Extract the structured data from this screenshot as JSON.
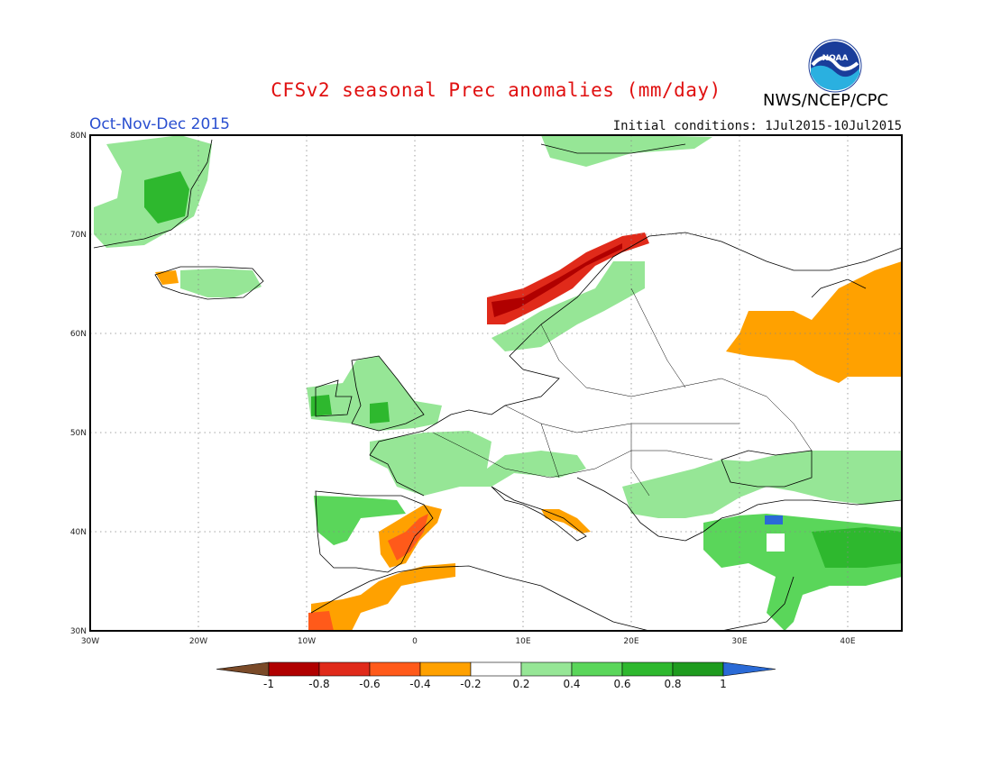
{
  "title": "CFSv2 seasonal Prec anomalies (mm/day)",
  "period": "Oct-Nov-Dec 2015",
  "initial_conditions": "Initial conditions: 1Jul2015-10Jul2015",
  "agency": "NWS/NCEP/CPC",
  "logo_text": "NOAA",
  "map": {
    "lon_range": [
      -30,
      45
    ],
    "lat_range": [
      30,
      80
    ],
    "lon_ticks": [
      "30W",
      "20W",
      "10W",
      "0",
      "10E",
      "20E",
      "30E",
      "40E"
    ],
    "lat_ticks": [
      "80N",
      "70N",
      "60N",
      "50N",
      "40N",
      "30N"
    ]
  },
  "colorbar": {
    "labels": [
      "-1",
      "-0.8",
      "-0.6",
      "-0.4",
      "-0.2",
      "0.2",
      "0.4",
      "0.6",
      "0.8",
      "1"
    ],
    "colors": [
      "#7a4a28",
      "#b00000",
      "#e02a1a",
      "#ff5a1a",
      "#ffa100",
      "#ffffff",
      "#96e696",
      "#5ad65a",
      "#2eb82e",
      "#1e9b1e",
      "#2a6ad6"
    ]
  },
  "colors": {
    "title": "#e01010",
    "period": "#2a4fd0",
    "land_outline": "#000000"
  }
}
